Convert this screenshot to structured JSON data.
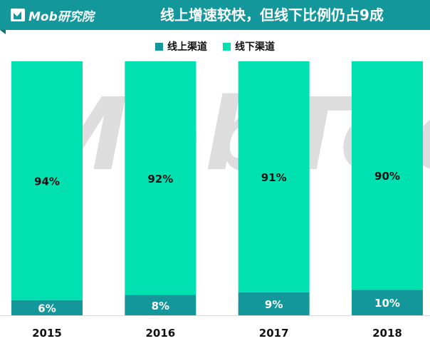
{
  "header": {
    "logo_text": "Mob研究院",
    "title": "线上增速较快，但线下比例仍占9成"
  },
  "watermark": "MobTech",
  "colors": {
    "banner": "#14979a",
    "online": "#14979a",
    "offline": "#00e0b0",
    "watermark": "#dddddd"
  },
  "chart_data": {
    "type": "bar",
    "stacked": true,
    "title": "线上增速较快，但线下比例仍占9成",
    "categories": [
      "2015",
      "2016",
      "2017",
      "2018"
    ],
    "series": [
      {
        "name": "线上渠道",
        "values": [
          6,
          8,
          9,
          10
        ],
        "labels": [
          "6%",
          "8%",
          "9%",
          "10%"
        ],
        "color": "#14979a"
      },
      {
        "name": "线下渠道",
        "values": [
          94,
          92,
          91,
          90
        ],
        "labels": [
          "94%",
          "92%",
          "91%",
          "90%"
        ],
        "color": "#00e0b0"
      }
    ],
    "ylim": [
      0,
      100
    ],
    "grid": false,
    "legend_position": "top-center",
    "xlabel": "",
    "ylabel": ""
  }
}
